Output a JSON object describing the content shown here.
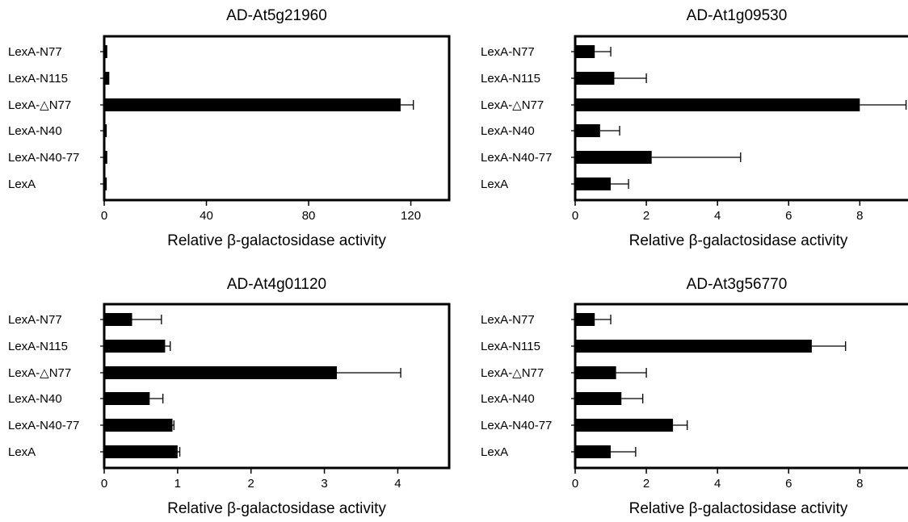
{
  "chart_data": [
    {
      "type": "bar",
      "orientation": "horizontal",
      "title": "AD-At5g21960",
      "xlabel": "Relative β-galactosidase activity",
      "ylabel": "",
      "categories": [
        "LexA-N77",
        "LexA-N115",
        "LexA-△N77",
        "LexA-N40",
        "LexA-N40-77",
        "LexA"
      ],
      "values": [
        1.2,
        2.0,
        116,
        1.0,
        1.2,
        1.0
      ],
      "errors": [
        0,
        0,
        5,
        0,
        0,
        0
      ],
      "xlim": [
        0,
        135
      ],
      "xticks": [
        0,
        40,
        80,
        120
      ],
      "grid": false,
      "color": "#000000"
    },
    {
      "type": "bar",
      "orientation": "horizontal",
      "title": "AD-At1g09530",
      "xlabel": "Relative β-galactosidase activity",
      "ylabel": "",
      "categories": [
        "LexA-N77",
        "LexA-N115",
        "LexA-△N77",
        "LexA-N40",
        "LexA-N40-77",
        "LexA"
      ],
      "values": [
        0.55,
        1.1,
        8.0,
        0.7,
        2.15,
        1.0
      ],
      "errors": [
        0.45,
        0.9,
        1.3,
        0.55,
        2.5,
        0.5
      ],
      "xlim": [
        0,
        9.4
      ],
      "xticks": [
        0,
        2,
        4,
        6,
        8
      ],
      "grid": false,
      "color": "#000000"
    },
    {
      "type": "bar",
      "orientation": "horizontal",
      "title": "AD-At4g01120",
      "xlabel": "Relative β-galactosidase activity",
      "ylabel": "",
      "categories": [
        "LexA-N77",
        "LexA-N115",
        "LexA-△N77",
        "LexA-N40",
        "LexA-N40-77",
        "LexA"
      ],
      "values": [
        0.38,
        0.83,
        3.17,
        0.62,
        0.93,
        1.0
      ],
      "errors": [
        0.4,
        0.07,
        0.87,
        0.18,
        0.02,
        0.03
      ],
      "xlim": [
        0,
        4.7
      ],
      "xticks": [
        0,
        1,
        2,
        3,
        4
      ],
      "grid": false,
      "color": "#000000"
    },
    {
      "type": "bar",
      "orientation": "horizontal",
      "title": "AD-At3g56770",
      "xlabel": "Relative β-galactosidase activity",
      "ylabel": "",
      "categories": [
        "LexA-N77",
        "LexA-N115",
        "LexA-△N77",
        "LexA-N40",
        "LexA-N40-77",
        "LexA"
      ],
      "values": [
        0.55,
        6.65,
        1.15,
        1.3,
        2.75,
        1.0
      ],
      "errors": [
        0.45,
        0.95,
        0.85,
        0.6,
        0.4,
        0.7
      ],
      "xlim": [
        0,
        9.4
      ],
      "xticks": [
        0,
        2,
        4,
        6,
        8
      ],
      "grid": false,
      "color": "#000000"
    }
  ]
}
